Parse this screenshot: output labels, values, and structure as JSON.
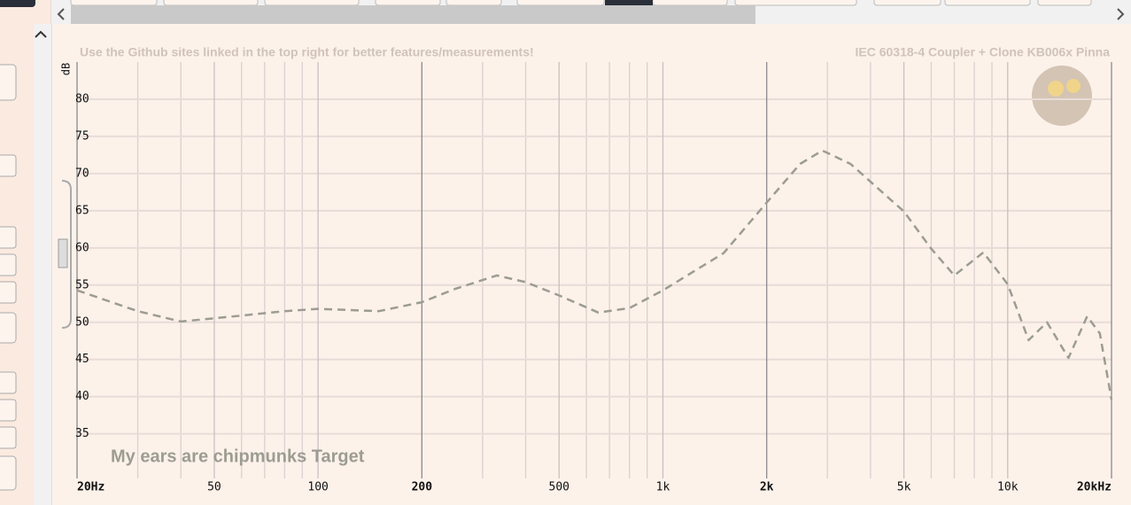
{
  "chart_data": {
    "type": "line",
    "notice": "Use the Github sites linked in the top right for better features/measurements!",
    "rig": "IEC 60318-4 Coupler + Clone KB006x Pinna",
    "ylabel": "dB",
    "xscale": "log",
    "xlim": [
      20,
      20000
    ],
    "ylim": [
      29,
      85
    ],
    "xticks": [
      {
        "value": 20,
        "label": "20Hz"
      },
      50,
      100,
      200,
      500,
      {
        "value": 1000,
        "label": "1k"
      },
      {
        "value": 2000,
        "label": "2k"
      },
      {
        "value": 5000,
        "label": "5k"
      },
      {
        "value": 10000,
        "label": "10k"
      },
      {
        "value": 20000,
        "label": "20kHz"
      }
    ],
    "minor_xticks": [
      30,
      40,
      60,
      70,
      80,
      90,
      300,
      400,
      600,
      700,
      800,
      900,
      3000,
      4000,
      6000,
      7000,
      8000,
      9000
    ],
    "yticks": [
      35,
      40,
      45,
      50,
      55,
      60,
      65,
      70,
      75,
      80
    ],
    "grid": true,
    "x": [
      20,
      30,
      40,
      60,
      80,
      100,
      150,
      200,
      250,
      330,
      400,
      500,
      650,
      800,
      1000,
      1500,
      2000,
      2500,
      2900,
      3500,
      5000,
      6000,
      7000,
      8500,
      10000,
      11500,
      13000,
      15000,
      17000,
      18500,
      20000
    ],
    "series": [
      {
        "name": "My ears are chipmunks Target",
        "color": "#9c9c92",
        "values": [
          54.3,
          51.5,
          50.1,
          50.9,
          51.5,
          51.8,
          51.5,
          52.7,
          54.5,
          56.3,
          55.4,
          53.6,
          51.3,
          51.9,
          54.3,
          59.3,
          66.1,
          71.3,
          73.1,
          71.3,
          64.9,
          59.9,
          56.3,
          59.4,
          55.1,
          47.6,
          50.0,
          45.2,
          50.8,
          48.5,
          39.6
        ]
      }
    ]
  }
}
